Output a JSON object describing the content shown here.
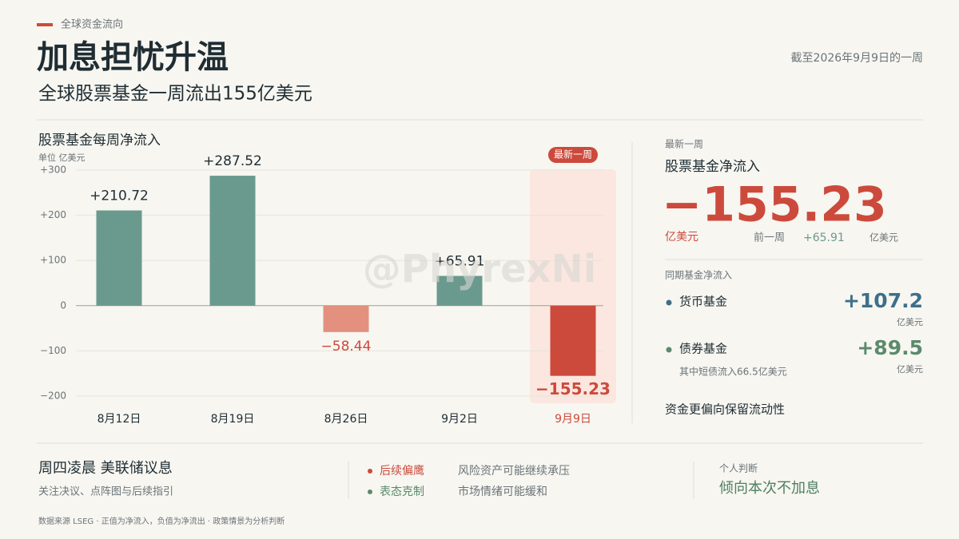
{
  "header": {
    "kicker": "全球资金流向",
    "title": "加息担忧升温",
    "subtitle": "全球股票基金一周流出155亿美元",
    "date": "截至2026年9月9日的一周"
  },
  "chart_data": {
    "type": "bar",
    "title": "股票基金每周净流入",
    "unit": "单位 亿美元",
    "categories": [
      "8月12日",
      "8月19日",
      "8月26日",
      "9月2日",
      "9月9日"
    ],
    "values": [
      210.72,
      287.52,
      -58.44,
      65.91,
      -155.23
    ],
    "value_labels": [
      "+210.72",
      "+287.52",
      "−58.44",
      "+65.91",
      "−155.23"
    ],
    "colors": [
      "#6a9a8e",
      "#6a9a8e",
      "#e4907f",
      "#6a9a8e",
      "#cc4a3c"
    ],
    "highlight_label": "最新一周",
    "ylim": [
      -200,
      300
    ],
    "yticks": [
      {
        "value": -200,
        "label": "−200"
      },
      {
        "value": -100,
        "label": "−100"
      },
      0,
      {
        "value": 100,
        "label": "+100"
      },
      {
        "value": 200,
        "label": "+200"
      },
      {
        "value": 300,
        "label": "+300"
      }
    ],
    "grid": true
  },
  "watermark": "@PhyrexNi",
  "panel": {
    "kicker": "最新一周",
    "title": "股票基金净流入",
    "big": "−155.23",
    "big_unit": "亿美元",
    "prev_label": "前一周",
    "prev_value": "+65.91",
    "prev_unit": "亿美元",
    "peer_title": "同期基金净流入",
    "money": {
      "name": "货币基金",
      "value": "+107.2",
      "unit": "亿美元"
    },
    "bond": {
      "name": "债券基金",
      "value": "+89.5",
      "unit": "亿美元",
      "note": "其中短债流入66.5亿美元"
    },
    "conclusion": "资金更偏向保留流动性"
  },
  "footer": {
    "event": "周四凌晨 美联储议息",
    "event_note": "关注决议、点阵图与后续指引",
    "scenarios": [
      {
        "tag": "后续偏鹰",
        "text": "风险资产可能继续承压"
      },
      {
        "tag": "表态克制",
        "text": "市场情绪可能缓和"
      }
    ],
    "judge_label": "个人判断",
    "judge": "倾向本次不加息",
    "source": "数据来源 LSEG · 正值为净流入，负值为净流出 · 政策情景为分析判断"
  }
}
